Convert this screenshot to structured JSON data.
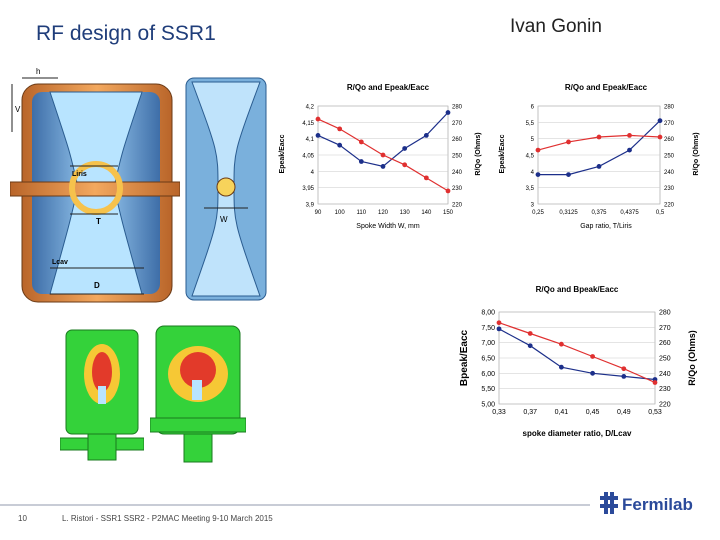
{
  "slide": {
    "title": "RF design of SSR1",
    "author": "Ivan Gonin",
    "page_number": "10",
    "footer": "L. Ristori - SSR1 SSR2 - P2MAC Meeting 9-10 March 2015",
    "logo_text": "Fermilab"
  },
  "drawing": {
    "labels": [
      "h",
      "V",
      "Liris",
      "T",
      "W",
      "Lcav",
      "D"
    ]
  },
  "colors": {
    "title": "#1f3d7a",
    "series_red": "#e03030",
    "series_blue": "#1c2f8a",
    "logo": "#2b4a9a"
  },
  "chart_data": [
    {
      "type": "line",
      "title": "R/Qo and Epeak/Eacc",
      "xlabel": "Spoke Width W, mm",
      "ylabel": "Epeak/Eacc",
      "y2label": "R/Qo (Ohms)",
      "x": [
        90,
        100,
        110,
        120,
        130,
        140,
        150
      ],
      "x_ticks": [
        "90",
        "100",
        "110",
        "120",
        "130",
        "140",
        "150"
      ],
      "ylim": [
        3.9,
        4.2
      ],
      "y_ticks": [
        "3,9",
        "3,95",
        "4",
        "4,05",
        "4,1",
        "4,15",
        "4,2"
      ],
      "y2lim": [
        220,
        280
      ],
      "y2_ticks": [
        "220",
        "230",
        "240",
        "250",
        "260",
        "270",
        "280"
      ],
      "series": [
        {
          "axis": "left",
          "color": "#1c2f8a",
          "values": [
            4.11,
            4.08,
            4.03,
            4.015,
            4.07,
            4.11,
            4.18
          ]
        },
        {
          "axis": "right",
          "color": "#e03030",
          "values": [
            272,
            266,
            258,
            250,
            244,
            236,
            228
          ]
        }
      ]
    },
    {
      "type": "line",
      "title": "R/Qo and Epeak/Eacc",
      "xlabel": "Gap ratio, T/Liris",
      "ylabel": "Epeak/Eacc",
      "y2label": "R/Qo (Ohms)",
      "x": [
        0.25,
        0.3125,
        0.375,
        0.4375,
        0.5
      ],
      "x_ticks": [
        "0,25",
        "0,3125",
        "0,375",
        "0,4375",
        "0,5"
      ],
      "ylim": [
        3,
        6
      ],
      "y_ticks": [
        "3",
        "3,5",
        "4",
        "4,5",
        "5",
        "5,5",
        "6"
      ],
      "y2lim": [
        220,
        280
      ],
      "y2_ticks": [
        "220",
        "230",
        "240",
        "250",
        "260",
        "270",
        "280"
      ],
      "series": [
        {
          "axis": "left",
          "color": "#1c2f8a",
          "values": [
            3.9,
            3.9,
            4.15,
            4.65,
            5.55
          ]
        },
        {
          "axis": "right",
          "color": "#e03030",
          "values": [
            253,
            258,
            261,
            262,
            261
          ]
        }
      ]
    },
    {
      "type": "line",
      "title": "R/Qo and Bpeak/Eacc",
      "xlabel": "spoke diameter ratio, D/Lcav",
      "ylabel": "Bpeak/Eacc",
      "y2label": "R/Qo (Ohms)",
      "x": [
        0.33,
        0.37,
        0.41,
        0.45,
        0.49,
        0.53
      ],
      "x_ticks": [
        "0,33",
        "0,37",
        "0,41",
        "0,45",
        "0,49",
        "0,53"
      ],
      "ylim": [
        5.0,
        8.0
      ],
      "y_ticks": [
        "5,00",
        "5,50",
        "6,00",
        "6,50",
        "7,00",
        "7,50",
        "8,00"
      ],
      "y2lim": [
        220,
        280
      ],
      "y2_ticks": [
        "220",
        "230",
        "240",
        "250",
        "260",
        "270",
        "280"
      ],
      "series": [
        {
          "axis": "left",
          "color": "#1c2f8a",
          "values": [
            7.45,
            6.9,
            6.2,
            6.0,
            5.9,
            5.8
          ]
        },
        {
          "axis": "right",
          "color": "#e03030",
          "values": [
            273,
            266,
            259,
            251,
            243,
            234
          ]
        }
      ]
    }
  ]
}
